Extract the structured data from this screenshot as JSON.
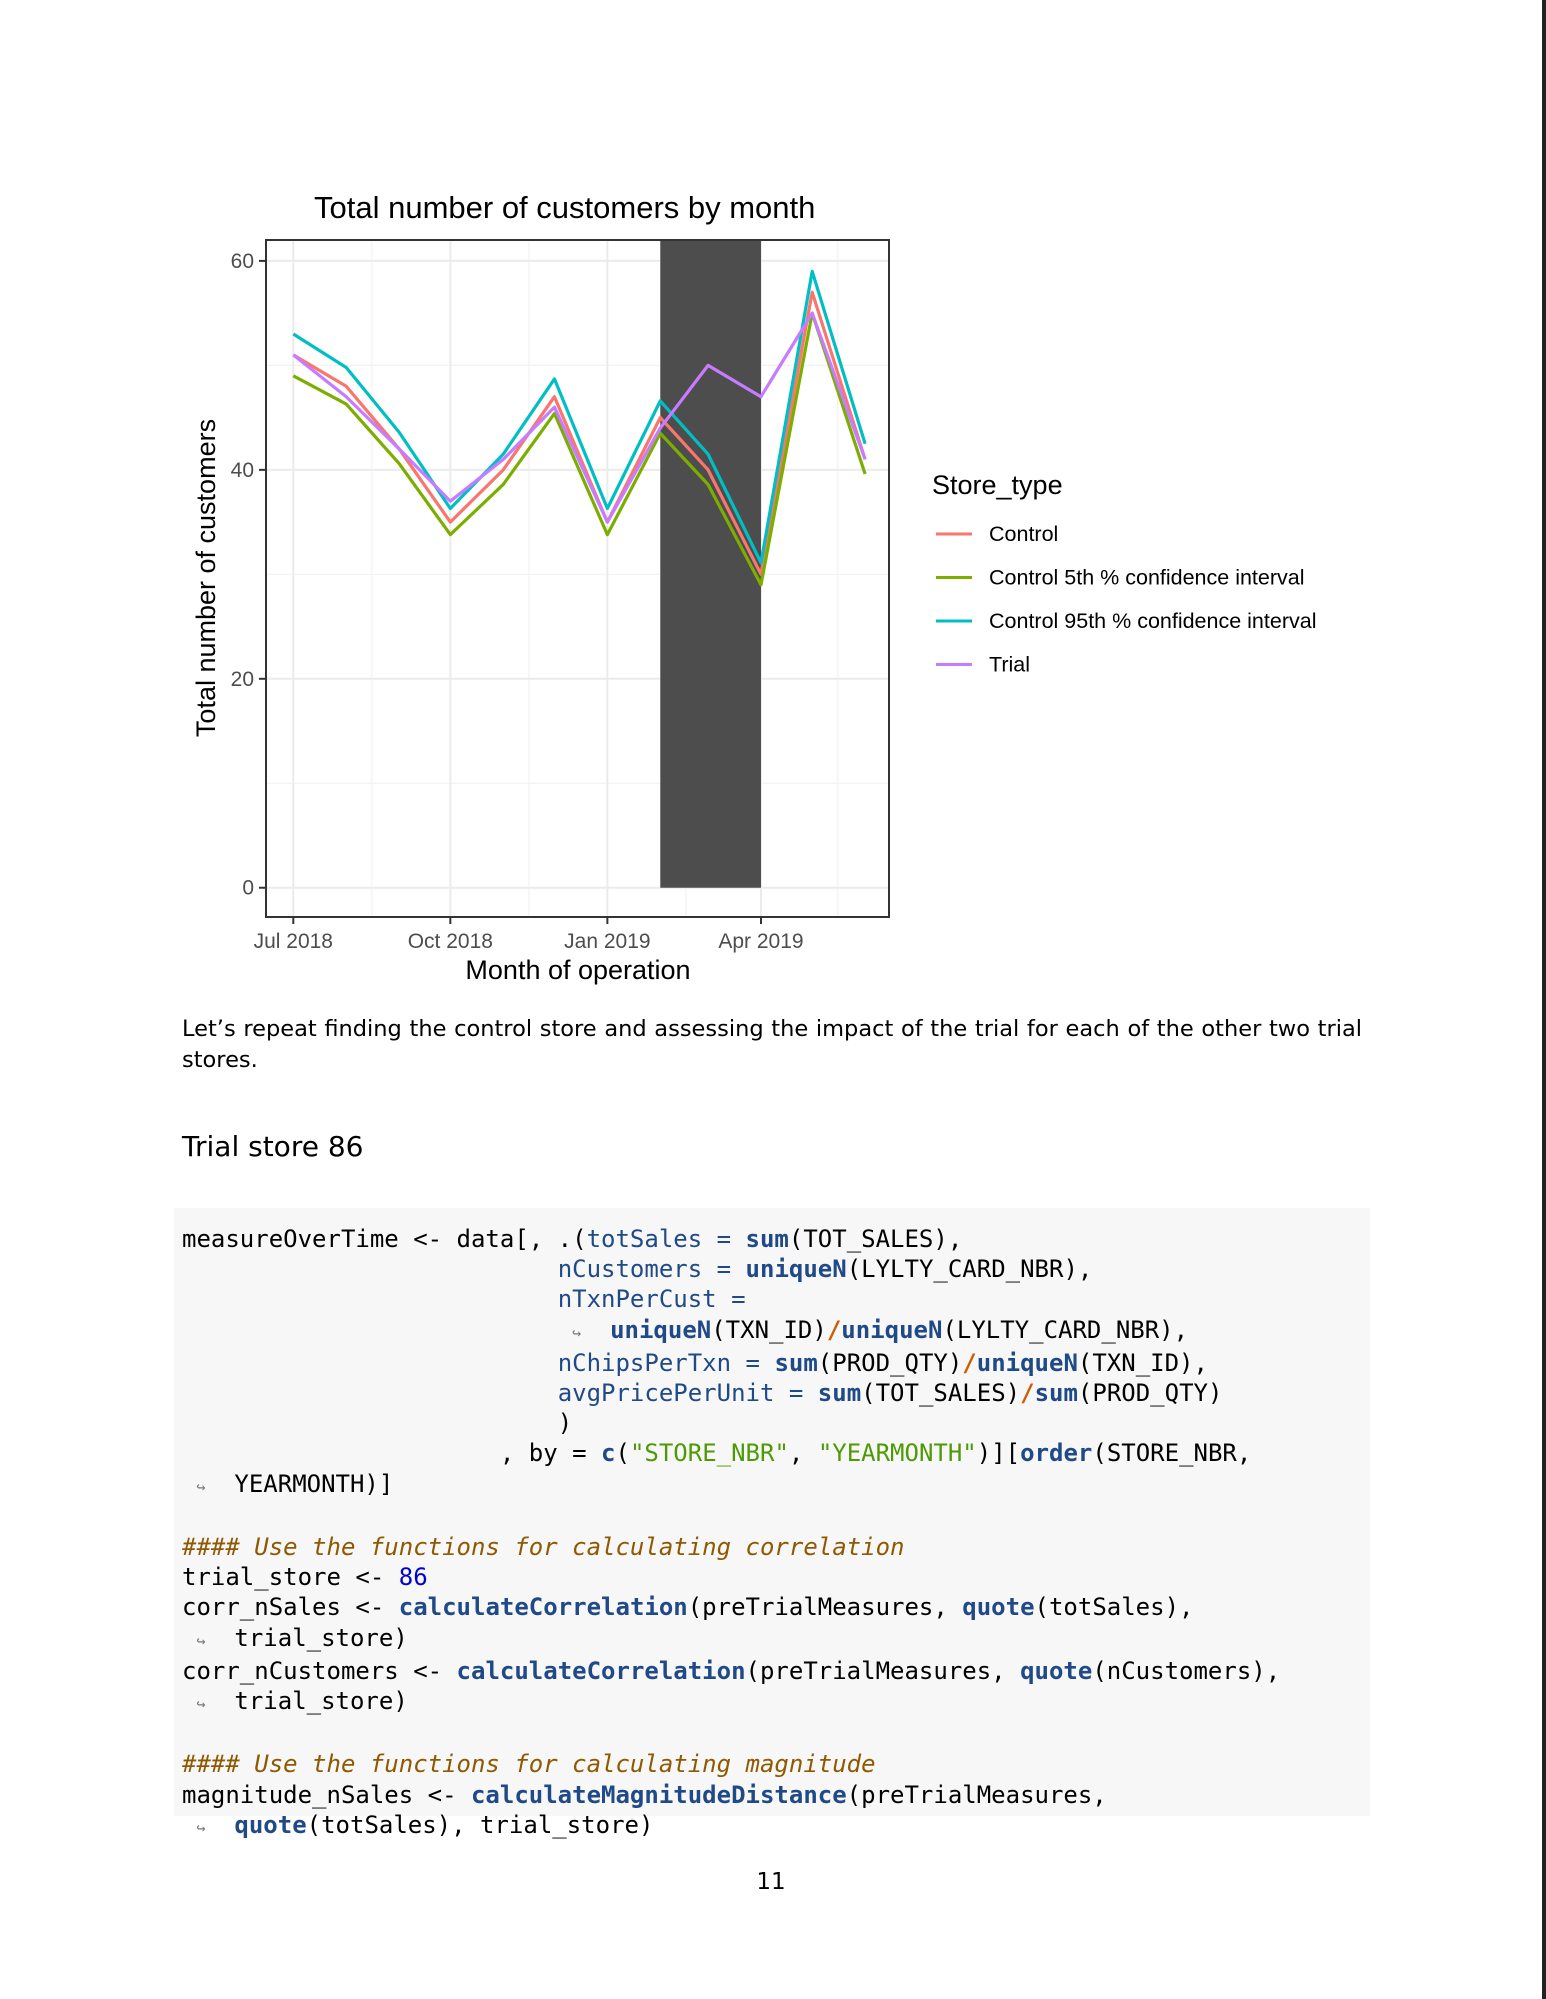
{
  "chart_data": {
    "type": "line",
    "title": "Total number of customers by month",
    "xlabel": "Month of operation",
    "ylabel": "Total number of customers",
    "x": [
      "2018-07",
      "2018-08",
      "2018-09",
      "2018-10",
      "2018-11",
      "2018-12",
      "2019-01",
      "2019-02",
      "2019-03",
      "2019-04",
      "2019-05",
      "2019-06"
    ],
    "x_tick_labels": [
      "Jul 2018",
      "Oct 2018",
      "Jan 2019",
      "Apr 2019"
    ],
    "x_tick_positions": [
      "2018-07",
      "2018-10",
      "2019-01",
      "2019-04"
    ],
    "y_ticks": [
      0,
      20,
      40,
      60
    ],
    "ylim": [
      -2.8,
      62
    ],
    "xlim": [
      "2018-06-15",
      "2019-06-15"
    ],
    "grid": true,
    "legend_title": "Store_type",
    "legend_position": "right",
    "highlight": {
      "from": "2019-02",
      "to": "2019-04",
      "ymin": 0,
      "color": "#4d4d4d"
    },
    "series": [
      {
        "name": "Control",
        "color": "#f8766d",
        "values": [
          51,
          48,
          42,
          35,
          40,
          47,
          35,
          45,
          40,
          30,
          57,
          41
        ]
      },
      {
        "name": "Control 5th % confidence interval",
        "color": "#7cae00",
        "values": [
          49,
          46.3,
          40.6,
          33.8,
          38.6,
          45.4,
          33.8,
          43.5,
          38.6,
          29,
          55,
          39.6
        ]
      },
      {
        "name": "Control 95th % confidence interval",
        "color": "#00bfc4",
        "values": [
          53,
          49.8,
          43.6,
          36.3,
          41.5,
          48.7,
          36.3,
          46.6,
          41.5,
          31.1,
          59,
          42.5
        ]
      },
      {
        "name": "Trial",
        "color": "#c77cff",
        "values": [
          51,
          47,
          42,
          37,
          41,
          46,
          35,
          44,
          50,
          47,
          55,
          41
        ]
      }
    ]
  },
  "body_text": "Let’s repeat finding the control store and assessing the impact of the trial for each of the other two trial stores.",
  "section_title": "Trial store 86",
  "code": {
    "l1a": "measureOverTime <- data[, .(",
    "l1b": "totSales",
    "l1c": " = ",
    "l1d": "sum",
    "l1e": "(TOT_SALES),",
    "l2a": "nCustomers",
    "l2b": " = ",
    "l2c": "uniqueN",
    "l2d": "(LYLTY_CARD_NBR),",
    "l3a": "nTxnPerCust",
    "l3b": " =",
    "l4a": "uniqueN",
    "l4b": "(TXN_ID)",
    "l4c": "/",
    "l4d": "uniqueN",
    "l4e": "(LYLTY_CARD_NBR),",
    "l5a": "nChipsPerTxn",
    "l5b": " = ",
    "l5c": "sum",
    "l5d": "(PROD_QTY)",
    "l5e": "/",
    "l5f": "uniqueN",
    "l5g": "(TXN_ID),",
    "l6a": "avgPricePerUnit",
    "l6b": " = ",
    "l6c": "sum",
    "l6d": "(TOT_SALES)",
    "l6e": "/",
    "l6f": "sum",
    "l6g": "(PROD_QTY)",
    "l7a": ")",
    "l8a": ", by = ",
    "l8b": "c",
    "l8c": "(",
    "l8d": "\"STORE_NBR\"",
    "l8e": ", ",
    "l8f": "\"YEARMONTH\"",
    "l8g": ")][",
    "l8h": "order",
    "l8i": "(STORE_NBR,",
    "l9a": "YEARMONTH)]",
    "c1": "#### Use the functions for calculating correlation",
    "l11a": "trial_store <- ",
    "l11b": "86",
    "l12a": "corr_nSales <- ",
    "l12b": "calculateCorrelation",
    "l12c": "(preTrialMeasures, ",
    "l12d": "quote",
    "l12e": "(totSales),",
    "l13a": "trial_store)",
    "l14a": "corr_nCustomers <- ",
    "l14b": "calculateCorrelation",
    "l14c": "(preTrialMeasures, ",
    "l14d": "quote",
    "l14e": "(nCustomers),",
    "l15a": "trial_store)",
    "c2": "#### Use the functions for calculating magnitude",
    "l17a": "magnitude_nSales <- ",
    "l17b": "calculateMagnitudeDistance",
    "l17c": "(preTrialMeasures,",
    "l18a": "quote",
    "l18b": "(totSales), trial_store)",
    "cont": "↪"
  },
  "page_number": "11"
}
